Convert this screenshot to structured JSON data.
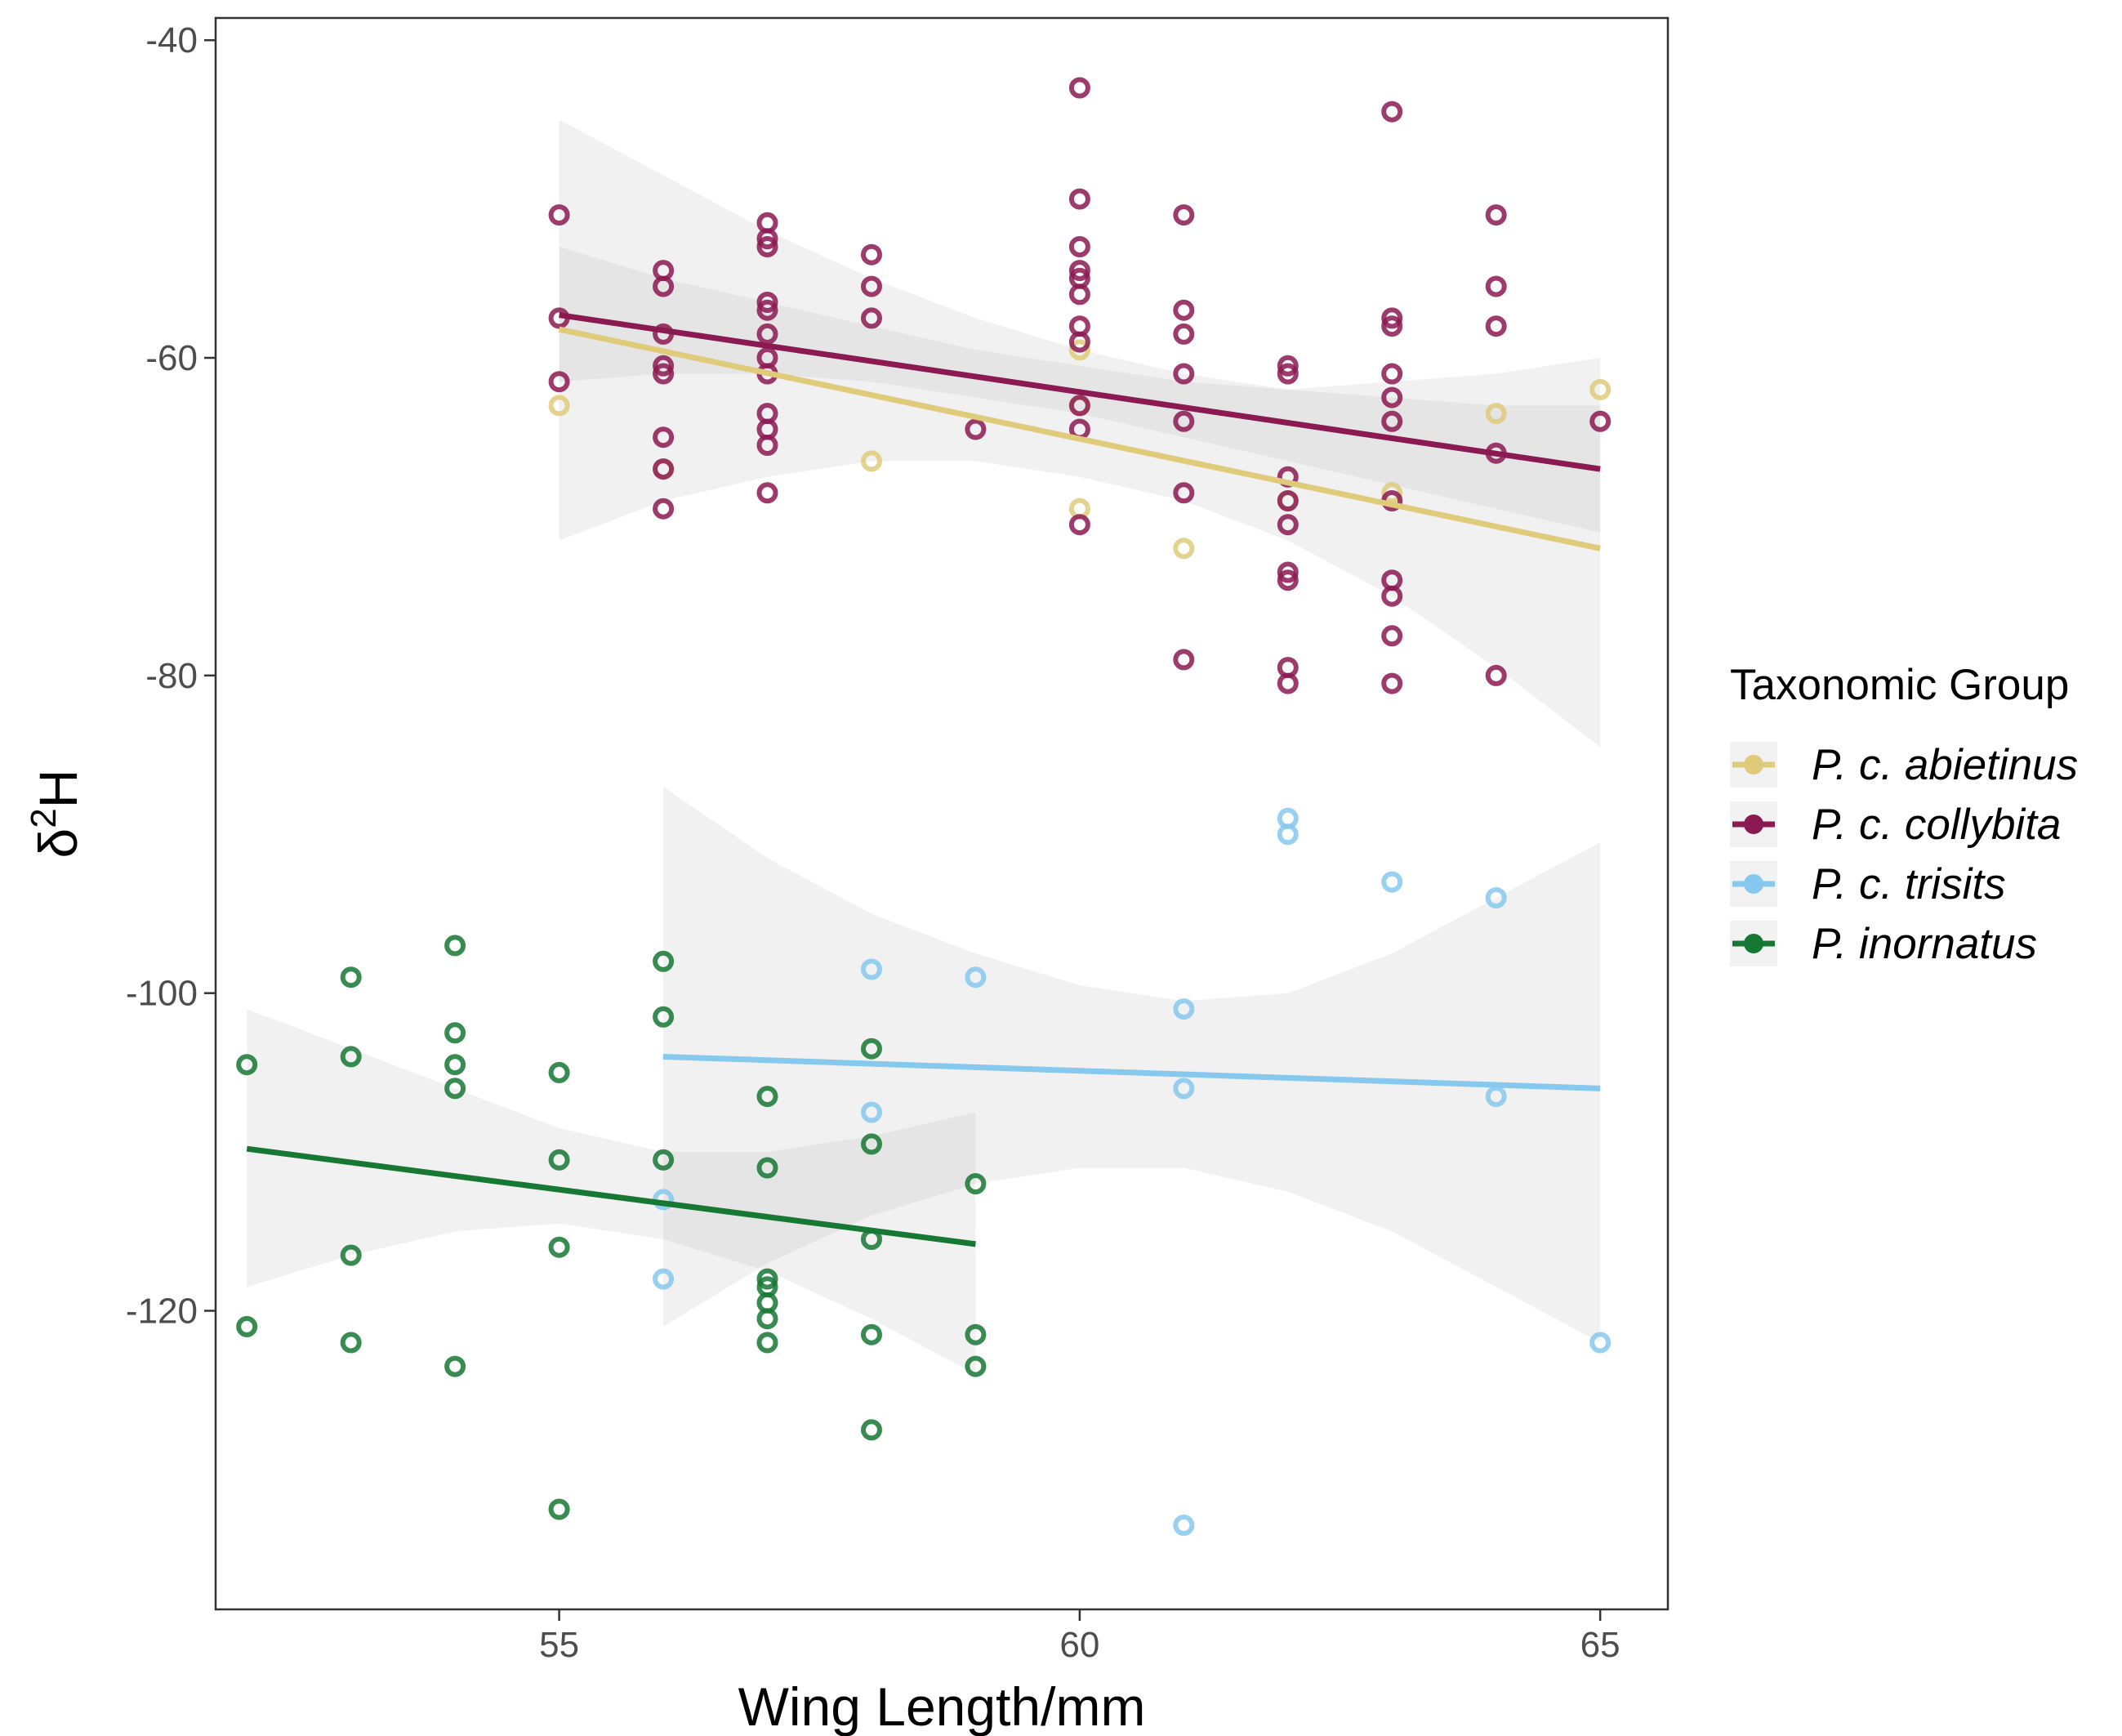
{
  "chart_data": {
    "type": "scatter",
    "title": "",
    "xlabel": "Wing Length/mm",
    "ylabel_symbol": "δ",
    "ylabel_superscript": "2",
    "ylabel_element": "H",
    "xlim": [
      51.7,
      65.65
    ],
    "ylim": [
      -138.8,
      -38.6
    ],
    "x_ticks": [
      55,
      60,
      65
    ],
    "y_ticks": [
      -40,
      -60,
      -80,
      -100,
      -120
    ],
    "grid": false,
    "legend": {
      "title": "Taxonomic Group",
      "placement": "right",
      "entries": [
        "P. c. abietinus",
        "P. c. collybita",
        "P. c. trisits",
        "P. inornatus"
      ]
    },
    "series": [
      {
        "name": "P. c. abietinus",
        "color": "#dfcb7a",
        "points": [
          [
            55,
            -63
          ],
          [
            56,
            -67
          ],
          [
            60,
            -59.5
          ],
          [
            60,
            -63
          ],
          [
            60,
            -69.5
          ],
          [
            58,
            -66.5
          ],
          [
            61,
            -72
          ],
          [
            63,
            -68.5
          ],
          [
            64,
            -63.5
          ],
          [
            65,
            -62
          ],
          [
            62,
            -69
          ]
        ],
        "fit": {
          "x": [
            55,
            65
          ],
          "y": [
            -58.2,
            -72.0
          ]
        },
        "ribbon": {
          "x": [
            55,
            56,
            57,
            58,
            59,
            60,
            61,
            62,
            63,
            64,
            65
          ],
          "lower": [
            -71.5,
            -69.0,
            -67.5,
            -66.5,
            -66.5,
            -67.5,
            -69.0,
            -71.5,
            -75.0,
            -79.5,
            -84.5
          ],
          "upper": [
            -45.0,
            -48.5,
            -52.0,
            -55.0,
            -57.5,
            -59.5,
            -61.0,
            -62.0,
            -61.5,
            -61.0,
            -60.0
          ]
        }
      },
      {
        "name": "P. c. collybita",
        "color": "#8c1a52",
        "points": [
          [
            55,
            -51
          ],
          [
            55,
            -57.5
          ],
          [
            55,
            -61.5
          ],
          [
            56,
            -54.5
          ],
          [
            56,
            -55.5
          ],
          [
            56,
            -58.5
          ],
          [
            56,
            -60.5
          ],
          [
            56,
            -61
          ],
          [
            56,
            -65
          ],
          [
            56,
            -67
          ],
          [
            56,
            -69.5
          ],
          [
            57,
            -51.5
          ],
          [
            57,
            -52.5
          ],
          [
            57,
            -53
          ],
          [
            57,
            -56.5
          ],
          [
            57,
            -57
          ],
          [
            57,
            -58.5
          ],
          [
            57,
            -60
          ],
          [
            57,
            -61
          ],
          [
            57,
            -63.5
          ],
          [
            57,
            -64.5
          ],
          [
            57,
            -65.5
          ],
          [
            57,
            -68.5
          ],
          [
            58,
            -53.5
          ],
          [
            58,
            -55.5
          ],
          [
            58,
            -57.5
          ],
          [
            59,
            -64.5
          ],
          [
            60,
            -43
          ],
          [
            60,
            -50
          ],
          [
            60,
            -53
          ],
          [
            60,
            -54.5
          ],
          [
            60,
            -55
          ],
          [
            60,
            -56
          ],
          [
            60,
            -58
          ],
          [
            60,
            -59
          ],
          [
            60,
            -63
          ],
          [
            60,
            -64.5
          ],
          [
            60,
            -70.5
          ],
          [
            61,
            -51
          ],
          [
            61,
            -57
          ],
          [
            61,
            -58.5
          ],
          [
            61,
            -61
          ],
          [
            61,
            -64
          ],
          [
            61,
            -68.5
          ],
          [
            61,
            -79
          ],
          [
            62,
            -60.5
          ],
          [
            62,
            -61
          ],
          [
            62,
            -67.5
          ],
          [
            62,
            -69
          ],
          [
            62,
            -70.5
          ],
          [
            62,
            -73.5
          ],
          [
            62,
            -74
          ],
          [
            62,
            -79.5
          ],
          [
            62,
            -80.5
          ],
          [
            63,
            -44.5
          ],
          [
            63,
            -57.5
          ],
          [
            63,
            -58
          ],
          [
            63,
            -61
          ],
          [
            63,
            -62.5
          ],
          [
            63,
            -64
          ],
          [
            63,
            -69
          ],
          [
            63,
            -74
          ],
          [
            63,
            -75
          ],
          [
            63,
            -77.5
          ],
          [
            63,
            -80.5
          ],
          [
            64,
            -51
          ],
          [
            64,
            -55.5
          ],
          [
            64,
            -58
          ],
          [
            64,
            -66
          ],
          [
            64,
            -80
          ],
          [
            65,
            -64
          ]
        ],
        "fit": {
          "x": [
            55,
            65
          ],
          "y": [
            -57.3,
            -67.0
          ]
        },
        "ribbon": {
          "x": [
            55,
            56,
            57,
            58,
            59,
            60,
            61,
            62,
            63,
            64,
            65
          ],
          "lower": [
            -61.5,
            -61.0,
            -61.0,
            -61.5,
            -62.5,
            -63.5,
            -65.0,
            -66.5,
            -68.0,
            -69.5,
            -71.0
          ],
          "upper": [
            -53.0,
            -55.0,
            -56.5,
            -58.0,
            -59.5,
            -60.5,
            -61.5,
            -62.0,
            -62.5,
            -63.0,
            -63.0
          ]
        }
      },
      {
        "name": "P. c. trisits",
        "color": "#86c8ee",
        "points": [
          [
            56,
            -113
          ],
          [
            56,
            -118
          ],
          [
            58,
            -98.5
          ],
          [
            58,
            -107.5
          ],
          [
            59,
            -99
          ],
          [
            61,
            -101
          ],
          [
            61,
            -106
          ],
          [
            61,
            -133.5
          ],
          [
            62,
            -89
          ],
          [
            62,
            -90
          ],
          [
            63,
            -93
          ],
          [
            64,
            -94
          ],
          [
            64,
            -106.5
          ],
          [
            65,
            -122
          ]
        ],
        "fit": {
          "x": [
            56,
            65
          ],
          "y": [
            -104.0,
            -106.0
          ]
        },
        "ribbon": {
          "x": [
            56,
            57,
            58,
            59,
            60,
            61,
            62,
            63,
            64,
            65
          ],
          "lower": [
            -121.0,
            -117.0,
            -114.0,
            -112.0,
            -111.0,
            -111.0,
            -112.5,
            -115.0,
            -118.5,
            -122.0
          ],
          "upper": [
            -87.0,
            -91.5,
            -95.0,
            -97.5,
            -99.5,
            -100.5,
            -100.0,
            -97.5,
            -94.0,
            -90.5
          ]
        }
      },
      {
        "name": "P. inornatus",
        "color": "#167832",
        "points": [
          [
            52,
            -104.5
          ],
          [
            52,
            -121
          ],
          [
            53,
            -99
          ],
          [
            53,
            -104
          ],
          [
            53,
            -116.5
          ],
          [
            53,
            -122
          ],
          [
            54,
            -97
          ],
          [
            54,
            -102.5
          ],
          [
            54,
            -104.5
          ],
          [
            54,
            -106
          ],
          [
            54,
            -123.5
          ],
          [
            55,
            -105
          ],
          [
            55,
            -110.5
          ],
          [
            55,
            -116
          ],
          [
            55,
            -132.5
          ],
          [
            56,
            -98
          ],
          [
            56,
            -101.5
          ],
          [
            56,
            -110.5
          ],
          [
            57,
            -106.5
          ],
          [
            57,
            -111
          ],
          [
            57,
            -118
          ],
          [
            57,
            -118.5
          ],
          [
            57,
            -119.5
          ],
          [
            57,
            -120.5
          ],
          [
            57,
            -122
          ],
          [
            58,
            -103.5
          ],
          [
            58,
            -109.5
          ],
          [
            58,
            -115.5
          ],
          [
            58,
            -121.5
          ],
          [
            58,
            -127.5
          ],
          [
            59,
            -112
          ],
          [
            59,
            -121.5
          ],
          [
            59,
            -123.5
          ]
        ],
        "fit": {
          "x": [
            52,
            59
          ],
          "y": [
            -109.8,
            -115.8
          ]
        },
        "ribbon": {
          "x": [
            52,
            53,
            54,
            55,
            56,
            57,
            58,
            59
          ],
          "lower": [
            -118.5,
            -116.5,
            -115.0,
            -114.5,
            -115.5,
            -117.5,
            -120.5,
            -124.0
          ],
          "upper": [
            -101.0,
            -103.5,
            -106.0,
            -108.5,
            -110.0,
            -110.0,
            -109.0,
            -107.5
          ]
        }
      }
    ]
  }
}
